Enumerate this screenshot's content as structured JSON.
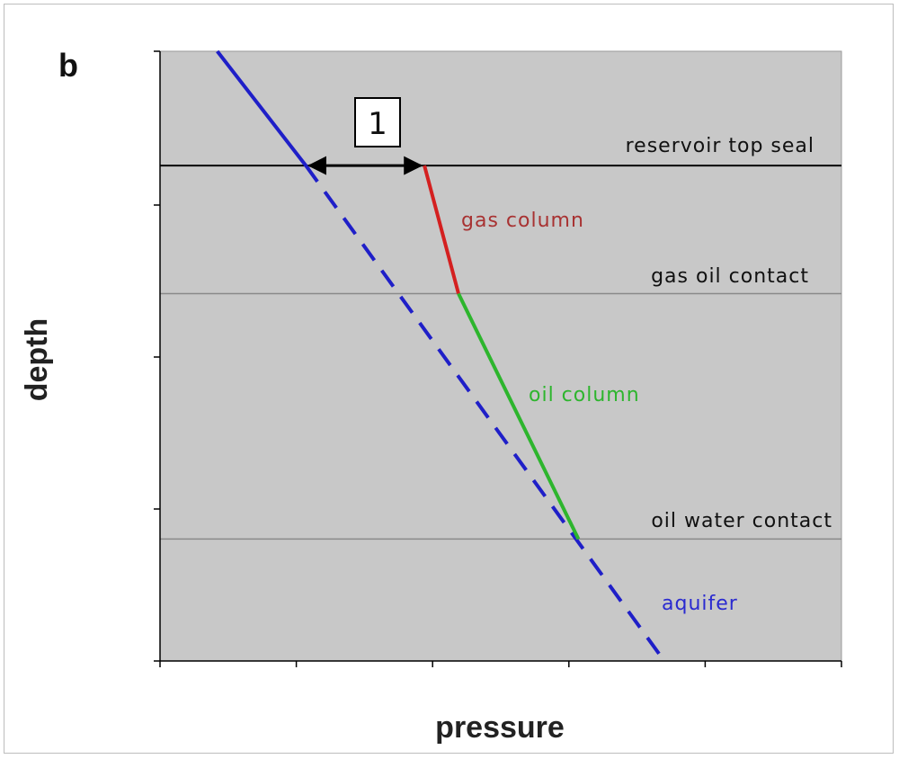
{
  "chart_data": {
    "type": "line",
    "panel_label": "b",
    "xlabel": "pressure",
    "ylabel": "depth",
    "xlim": [
      0,
      5
    ],
    "ylim": [
      0,
      4
    ],
    "y_inverted": true,
    "x_ticks": [
      0,
      1,
      2,
      3,
      4,
      5
    ],
    "y_ticks": [
      0,
      1,
      2,
      3,
      4
    ],
    "grid": false,
    "series": [
      {
        "key": "water_gradient",
        "color": "#1f1fc8",
        "style": "solid",
        "x": [
          0.42,
          1.07
        ],
        "y": [
          0.0,
          0.75
        ]
      },
      {
        "key": "water_gradient_ext",
        "color": "#1f1fc8",
        "style": "dashed",
        "x": [
          1.07,
          3.7
        ],
        "y": [
          0.75,
          4.0
        ]
      },
      {
        "key": "gas_column",
        "color": "#d42020",
        "style": "solid",
        "x": [
          1.94,
          2.19
        ],
        "y": [
          0.75,
          1.59
        ]
      },
      {
        "key": "oil_column",
        "color": "#2db52d",
        "style": "solid",
        "x": [
          2.19,
          3.07
        ],
        "y": [
          1.59,
          3.2
        ]
      }
    ],
    "contacts": [
      {
        "label": "reservoir top seal",
        "y": 0.75,
        "color": "#000000"
      },
      {
        "label": "gas oil contact",
        "y": 1.59,
        "color": "#8a8a8a"
      },
      {
        "label": "oil water contact",
        "y": 3.2,
        "color": "#8a8a8a"
      }
    ],
    "zone_labels": [
      {
        "label": "gas column",
        "color": "#a83232"
      },
      {
        "label": "oil column",
        "color": "#2db52d"
      },
      {
        "label": "aquifer",
        "color": "#2a2ad0"
      }
    ],
    "annotation": {
      "label": "1",
      "x_from": 1.07,
      "x_to": 1.94,
      "y": 0.75
    }
  }
}
